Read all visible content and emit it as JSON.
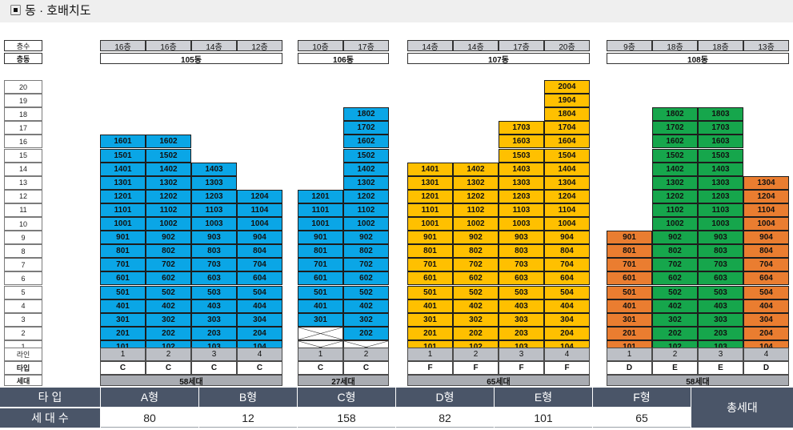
{
  "header": {
    "title": "▣ 동 · 호배치도"
  },
  "floors": [
    "20",
    "19",
    "18",
    "17",
    "16",
    "15",
    "14",
    "13",
    "12",
    "11",
    "10",
    "9",
    "8",
    "7",
    "6",
    "5",
    "4",
    "3",
    "2",
    "1"
  ],
  "labels": {
    "floor_count": "층수",
    "building": "층동",
    "line": "라인",
    "type": "타입",
    "households": "세대"
  },
  "colors": {
    "C": "#0aa6e6",
    "F": "#ffc000",
    "D": "#ea7d30",
    "E": "#16a64c"
  },
  "buildings": [
    {
      "name": "105동",
      "households": "58세대",
      "lines": [
        {
          "line": "1",
          "type": "C",
          "max_floor": "16층",
          "top": 16,
          "blank": []
        },
        {
          "line": "2",
          "type": "C",
          "max_floor": "16층",
          "top": 16,
          "blank": []
        },
        {
          "line": "3",
          "type": "C",
          "max_floor": "14층",
          "top": 14,
          "blank": []
        },
        {
          "line": "4",
          "type": "C",
          "max_floor": "12층",
          "top": 12,
          "blank": []
        }
      ]
    },
    {
      "name": "106동",
      "households": "27세대",
      "lines": [
        {
          "line": "1",
          "type": "C",
          "max_floor": "10층",
          "top": 12,
          "blank": [
            1,
            2
          ]
        },
        {
          "line": "2",
          "type": "C",
          "max_floor": "17층",
          "top": 18,
          "blank": [
            1
          ]
        }
      ]
    },
    {
      "name": "107동",
      "households": "65세대",
      "lines": [
        {
          "line": "1",
          "type": "F",
          "max_floor": "14층",
          "top": 14,
          "blank": []
        },
        {
          "line": "2",
          "type": "F",
          "max_floor": "14층",
          "top": 14,
          "blank": []
        },
        {
          "line": "3",
          "type": "F",
          "max_floor": "17층",
          "top": 17,
          "blank": []
        },
        {
          "line": "4",
          "type": "F",
          "max_floor": "20층",
          "top": 20,
          "blank": []
        }
      ]
    },
    {
      "name": "108동",
      "households": "58세대",
      "lines": [
        {
          "line": "1",
          "type": "D",
          "max_floor": "9층",
          "top": 9,
          "blank": []
        },
        {
          "line": "2",
          "type": "E",
          "max_floor": "18층",
          "top": 18,
          "blank": []
        },
        {
          "line": "3",
          "type": "E",
          "max_floor": "18층",
          "top": 18,
          "blank": []
        },
        {
          "line": "4",
          "type": "D",
          "max_floor": "13층",
          "top": 13,
          "blank": []
        }
      ]
    }
  ],
  "summary": {
    "type_label": "타 입",
    "count_label": "세 대 수",
    "total_label": "총세대",
    "types": [
      {
        "name": "A형",
        "count": "80"
      },
      {
        "name": "B형",
        "count": "12"
      },
      {
        "name": "C형",
        "count": "158"
      },
      {
        "name": "D형",
        "count": "82"
      },
      {
        "name": "E형",
        "count": "101"
      },
      {
        "name": "F형",
        "count": "65"
      }
    ]
  }
}
